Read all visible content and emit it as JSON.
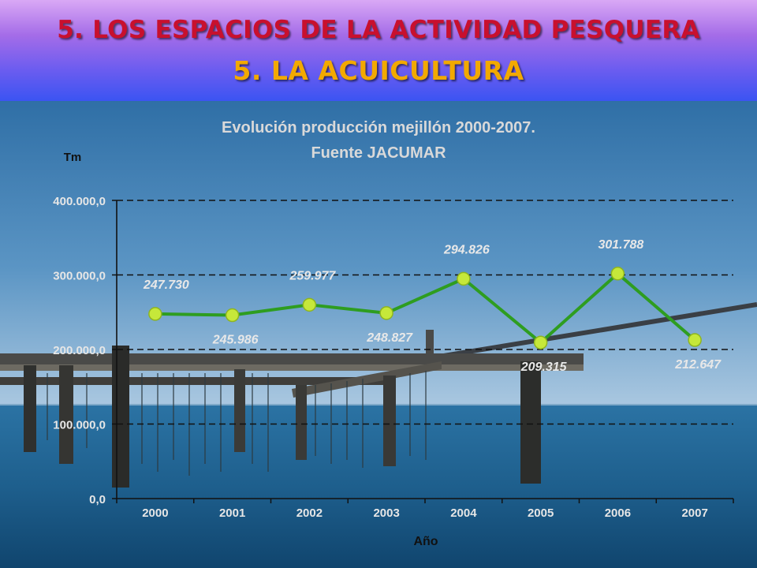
{
  "slide": {
    "title": "5. LOS ESPACIOS DE LA ACTIVIDAD PESQUERA",
    "subtitle": "5. LA ACUICULTURA"
  },
  "colors": {
    "title": "#c8102e",
    "subtitle": "#f2a900",
    "line": "#2e9d20",
    "marker": "#c6e83a"
  },
  "chart_data": {
    "type": "line",
    "title_lines": [
      "Evolución producción mejillón 2000-2007.",
      "Fuente JACUMAR"
    ],
    "ylabel": "Tm",
    "xlabel": "Año",
    "categories": [
      "2000",
      "2001",
      "2002",
      "2003",
      "2004",
      "2005",
      "2006",
      "2007"
    ],
    "values": [
      247730,
      245986,
      259977,
      248827,
      294826,
      209315,
      301788,
      212647
    ],
    "value_labels": [
      "247.730",
      "245.986",
      "259.977",
      "248.827",
      "294.826",
      "209.315",
      "301.788",
      "212.647"
    ],
    "ylim": [
      0,
      400000
    ],
    "yticks": [
      0,
      100000,
      200000,
      300000,
      400000
    ],
    "ytick_labels": [
      "0,0",
      "100.000,0",
      "200.000,0",
      "300.000,0",
      "400.000,0"
    ],
    "grid": true,
    "legend": "none"
  }
}
